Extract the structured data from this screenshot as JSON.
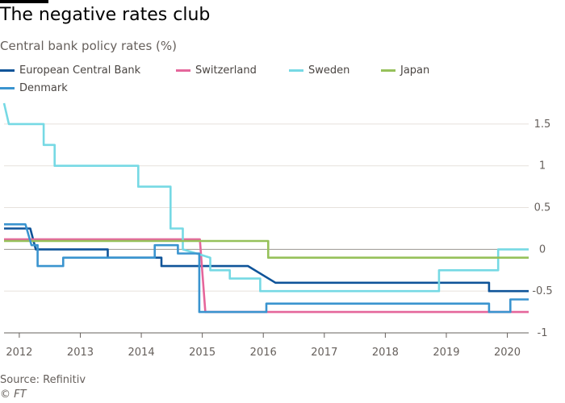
{
  "header": {
    "title": "The negative rates club",
    "subtitle": "Central bank policy rates (%)"
  },
  "footer": {
    "source": "Source: Refinitiv",
    "credit": "© FT"
  },
  "chart_data": {
    "type": "line",
    "title": "The negative rates club",
    "subtitle": "Central bank policy rates (%)",
    "xlabel": "",
    "ylabel": "",
    "x_unit": "year",
    "xlim": [
      2011.75,
      2020.35
    ],
    "ylim": [
      -1,
      1.75
    ],
    "x_ticks": [
      2012,
      2013,
      2014,
      2015,
      2016,
      2017,
      2018,
      2019,
      2020
    ],
    "x_tick_labels": [
      "2012",
      "2013",
      "2014",
      "2015",
      "2016",
      "2017",
      "2018",
      "2019",
      "2020"
    ],
    "y_ticks": [
      1.5,
      1,
      0.5,
      0,
      -0.5,
      -1
    ],
    "y_tick_labels": [
      "1.5",
      "1",
      "0.5",
      "0",
      "-0.5",
      "-1"
    ],
    "grid": true,
    "legend_position": "top",
    "series": [
      {
        "name": "European Central Bank",
        "color": "#0f5499",
        "points": [
          [
            2011.75,
            0.25
          ],
          [
            2012.18,
            0.25
          ],
          [
            2012.27,
            0
          ],
          [
            2013.45,
            0
          ],
          [
            2013.45,
            -0.1
          ],
          [
            2014.33,
            -0.1
          ],
          [
            2014.33,
            -0.2
          ],
          [
            2015.75,
            -0.2
          ],
          [
            2016.2,
            -0.4
          ],
          [
            2019.7,
            -0.4
          ],
          [
            2019.7,
            -0.5
          ],
          [
            2020.35,
            -0.5
          ]
        ]
      },
      {
        "name": "Switzerland",
        "color": "#e5669b",
        "points": [
          [
            2011.75,
            0.12
          ],
          [
            2014.96,
            0.12
          ],
          [
            2015.05,
            -0.75
          ],
          [
            2020.35,
            -0.75
          ]
        ]
      },
      {
        "name": "Sweden",
        "color": "#76d9e4",
        "points": [
          [
            2011.75,
            1.75
          ],
          [
            2011.83,
            1.5
          ],
          [
            2012.4,
            1.5
          ],
          [
            2012.4,
            1.25
          ],
          [
            2012.58,
            1.25
          ],
          [
            2012.58,
            1.0
          ],
          [
            2013.95,
            1.0
          ],
          [
            2013.95,
            0.75
          ],
          [
            2014.48,
            0.75
          ],
          [
            2014.48,
            0.25
          ],
          [
            2014.68,
            0.25
          ],
          [
            2014.68,
            0
          ],
          [
            2015.13,
            -0.1
          ],
          [
            2015.13,
            -0.25
          ],
          [
            2015.45,
            -0.25
          ],
          [
            2015.45,
            -0.35
          ],
          [
            2015.95,
            -0.35
          ],
          [
            2015.95,
            -0.5
          ],
          [
            2018.88,
            -0.5
          ],
          [
            2018.88,
            -0.25
          ],
          [
            2019.85,
            -0.25
          ],
          [
            2019.85,
            0
          ],
          [
            2020.35,
            0
          ]
        ]
      },
      {
        "name": "Japan",
        "color": "#96c15a",
        "points": [
          [
            2011.75,
            0.1
          ],
          [
            2016.08,
            0.1
          ],
          [
            2016.08,
            -0.1
          ],
          [
            2020.35,
            -0.1
          ]
        ]
      },
      {
        "name": "Denmark",
        "color": "#3a94cf",
        "points": [
          [
            2011.75,
            0.3
          ],
          [
            2012.1,
            0.3
          ],
          [
            2012.2,
            0.05
          ],
          [
            2012.3,
            0.05
          ],
          [
            2012.3,
            -0.2
          ],
          [
            2012.72,
            -0.2
          ],
          [
            2012.72,
            -0.1
          ],
          [
            2014.22,
            -0.1
          ],
          [
            2014.22,
            0.05
          ],
          [
            2014.6,
            0.05
          ],
          [
            2014.6,
            -0.05
          ],
          [
            2014.95,
            -0.05
          ],
          [
            2014.95,
            -0.75
          ],
          [
            2016.05,
            -0.75
          ],
          [
            2016.05,
            -0.65
          ],
          [
            2019.7,
            -0.65
          ],
          [
            2019.7,
            -0.75
          ],
          [
            2020.05,
            -0.75
          ],
          [
            2020.05,
            -0.6
          ],
          [
            2020.35,
            -0.6
          ]
        ]
      }
    ]
  }
}
